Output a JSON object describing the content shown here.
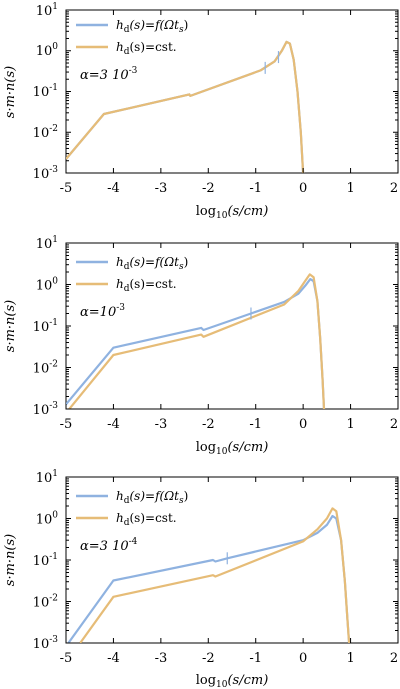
{
  "chart_data": [
    {
      "type": "line",
      "log_y": true,
      "xlim": [
        -5,
        2
      ],
      "ylim": [
        0.001,
        10
      ],
      "xticks": [
        "-5",
        "-4",
        "-3",
        "-2",
        "-1",
        "0",
        "1",
        "2"
      ],
      "yticks": [
        {
          "base": "10",
          "exp": "-3"
        },
        {
          "base": "10",
          "exp": "-2"
        },
        {
          "base": "10",
          "exp": "-1"
        },
        {
          "base": "10",
          "exp": "0"
        },
        {
          "base": "10",
          "exp": "1"
        }
      ],
      "xlabel": {
        "pre": "log",
        "sub": "10",
        "post": "(s/cm)"
      },
      "ylabel": "s·m·n(s)",
      "annotation": {
        "prefix": "α=3 10",
        "exp": "-3"
      },
      "series": [
        {
          "legend": {
            "a": "h",
            "sub": "d",
            "b": "(s)=f(Ωt",
            "sub2": "s",
            "c": ")"
          },
          "color": "#8fb2e0",
          "points": [
            [
              -5.0,
              0.0022
            ],
            [
              -4.2,
              0.028
            ],
            [
              -2.4,
              0.085
            ],
            [
              -2.38,
              0.078
            ],
            [
              -0.9,
              0.33
            ],
            [
              -0.6,
              0.55
            ],
            [
              -0.45,
              1.0
            ],
            [
              -0.35,
              1.65
            ],
            [
              -0.28,
              1.5
            ],
            [
              -0.2,
              0.6
            ],
            [
              -0.12,
              0.1
            ],
            [
              -0.05,
              0.01
            ],
            [
              0.0,
              0.001
            ]
          ]
        },
        {
          "legend": {
            "a": "h",
            "sub": "d",
            "b": "(s)=cst.",
            "sub2": "",
            "c": ""
          },
          "color": "#e6bc77",
          "points": [
            [
              -5.0,
              0.0022
            ],
            [
              -4.2,
              0.028
            ],
            [
              -2.4,
              0.085
            ],
            [
              -2.38,
              0.078
            ],
            [
              -0.9,
              0.33
            ],
            [
              -0.6,
              0.55
            ],
            [
              -0.45,
              1.0
            ],
            [
              -0.35,
              1.65
            ],
            [
              -0.28,
              1.5
            ],
            [
              -0.2,
              0.6
            ],
            [
              -0.12,
              0.1
            ],
            [
              -0.05,
              0.01
            ],
            [
              0.0,
              0.001
            ]
          ]
        }
      ],
      "tick_marks": [
        [
          -0.8,
          0.38
        ],
        [
          -0.52,
          0.7
        ]
      ]
    },
    {
      "type": "line",
      "log_y": true,
      "xlim": [
        -5,
        2
      ],
      "ylim": [
        0.001,
        10
      ],
      "xticks": [
        "-5",
        "-4",
        "-3",
        "-2",
        "-1",
        "0",
        "1",
        "2"
      ],
      "yticks": [
        {
          "base": "10",
          "exp": "-3"
        },
        {
          "base": "10",
          "exp": "-2"
        },
        {
          "base": "10",
          "exp": "-1"
        },
        {
          "base": "10",
          "exp": "0"
        },
        {
          "base": "10",
          "exp": "1"
        }
      ],
      "xlabel": {
        "pre": "log",
        "sub": "10",
        "post": "(s/cm)"
      },
      "ylabel": "s·m·n(s)",
      "annotation": {
        "prefix": "α=10",
        "exp": "-3"
      },
      "series": [
        {
          "legend": {
            "a": "h",
            "sub": "d",
            "b": "(s)=f(Ωt",
            "sub2": "s",
            "c": ")"
          },
          "color": "#8fb2e0",
          "points": [
            [
              -5.0,
              0.0013
            ],
            [
              -4.0,
              0.03
            ],
            [
              -2.15,
              0.09
            ],
            [
              -2.1,
              0.08
            ],
            [
              -1.1,
              0.2
            ],
            [
              -0.4,
              0.38
            ],
            [
              -0.1,
              0.6
            ],
            [
              0.05,
              0.95
            ],
            [
              0.15,
              1.35
            ],
            [
              0.22,
              1.2
            ],
            [
              0.3,
              0.4
            ],
            [
              0.36,
              0.05
            ],
            [
              0.41,
              0.005
            ],
            [
              0.44,
              0.001
            ]
          ]
        },
        {
          "legend": {
            "a": "h",
            "sub": "d",
            "b": "(s)=cst.",
            "sub2": "",
            "c": ""
          },
          "color": "#e6bc77",
          "points": [
            [
              -5.0,
              0.0008
            ],
            [
              -4.0,
              0.02
            ],
            [
              -2.15,
              0.062
            ],
            [
              -2.1,
              0.055
            ],
            [
              -0.4,
              0.33
            ],
            [
              -0.1,
              0.7
            ],
            [
              0.05,
              1.25
            ],
            [
              0.14,
              1.75
            ],
            [
              0.22,
              1.5
            ],
            [
              0.3,
              0.4
            ],
            [
              0.36,
              0.05
            ],
            [
              0.41,
              0.005
            ],
            [
              0.44,
              0.001
            ]
          ]
        }
      ],
      "tick_marks": [
        [
          -1.1,
          0.2
        ]
      ]
    },
    {
      "type": "line",
      "log_y": true,
      "xlim": [
        -5,
        2
      ],
      "ylim": [
        0.001,
        10
      ],
      "xticks": [
        "-5",
        "-4",
        "-3",
        "-2",
        "-1",
        "0",
        "1",
        "2"
      ],
      "yticks": [
        {
          "base": "10",
          "exp": "-3"
        },
        {
          "base": "10",
          "exp": "-2"
        },
        {
          "base": "10",
          "exp": "-1"
        },
        {
          "base": "10",
          "exp": "0"
        },
        {
          "base": "10",
          "exp": "1"
        }
      ],
      "xlabel": {
        "pre": "log",
        "sub": "10",
        "post": "(s/cm)"
      },
      "ylabel": "s·m·n(s)",
      "annotation": {
        "prefix": "α=3 10",
        "exp": "-4"
      },
      "series": [
        {
          "legend": {
            "a": "h",
            "sub": "d",
            "b": "(s)=f(Ωt",
            "sub2": "s",
            "c": ")"
          },
          "color": "#8fb2e0",
          "points": [
            [
              -4.95,
              0.001
            ],
            [
              -4.0,
              0.032
            ],
            [
              -1.9,
              0.1
            ],
            [
              -1.85,
              0.092
            ],
            [
              -1.6,
              0.11
            ],
            [
              0.0,
              0.3
            ],
            [
              0.3,
              0.45
            ],
            [
              0.5,
              0.7
            ],
            [
              0.62,
              1.15
            ],
            [
              0.7,
              1.0
            ],
            [
              0.8,
              0.3
            ],
            [
              0.88,
              0.03
            ],
            [
              0.94,
              0.003
            ],
            [
              0.97,
              0.001
            ]
          ]
        },
        {
          "legend": {
            "a": "h",
            "sub": "d",
            "b": "(s)=cst.",
            "sub2": "",
            "c": ""
          },
          "color": "#e6bc77",
          "points": [
            [
              -4.7,
              0.001
            ],
            [
              -4.0,
              0.013
            ],
            [
              -1.9,
              0.043
            ],
            [
              -1.85,
              0.04
            ],
            [
              0.0,
              0.28
            ],
            [
              0.3,
              0.55
            ],
            [
              0.5,
              1.0
            ],
            [
              0.62,
              1.75
            ],
            [
              0.7,
              1.5
            ],
            [
              0.8,
              0.3
            ],
            [
              0.88,
              0.03
            ],
            [
              0.94,
              0.003
            ],
            [
              0.97,
              0.001
            ]
          ]
        }
      ],
      "tick_marks": [
        [
          -1.6,
          0.11
        ]
      ]
    }
  ]
}
